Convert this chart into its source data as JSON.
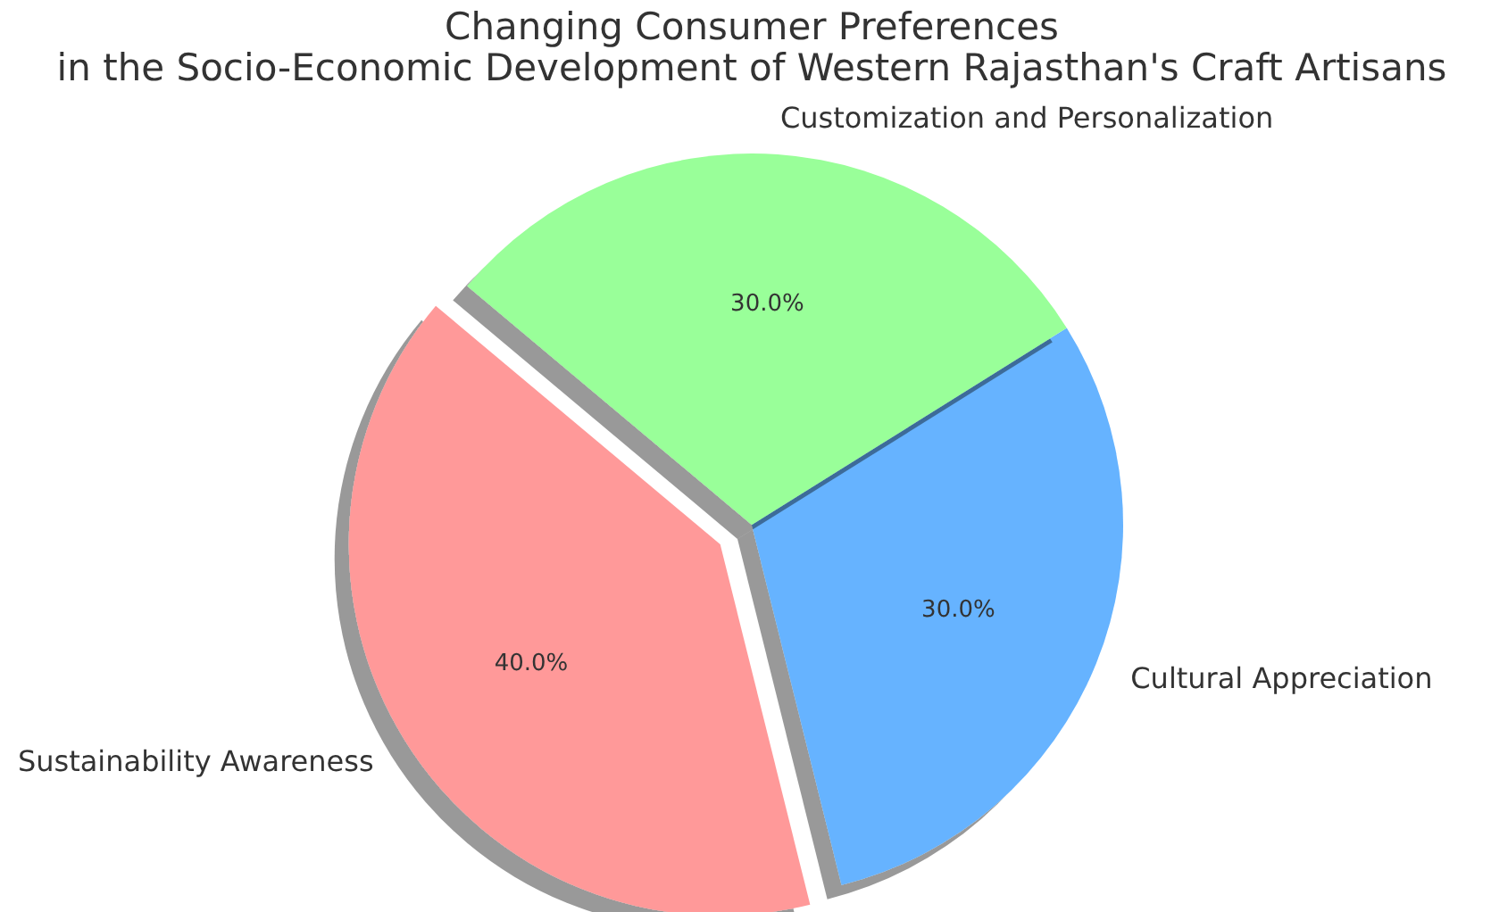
{
  "chart_data": {
    "type": "pie",
    "title": "Changing Consumer Preferences\nin the Socio-Economic Development of Western Rajasthan's Craft Artisans",
    "categories": [
      "Sustainability Awareness",
      "Cultural Appreciation",
      "Customization and Personalization"
    ],
    "values": [
      40,
      30,
      30
    ],
    "colors": [
      "#ff9999",
      "#66b3ff",
      "#99ff99"
    ],
    "value_labels": [
      "40.0%",
      "30.0%",
      "30.0%"
    ]
  }
}
